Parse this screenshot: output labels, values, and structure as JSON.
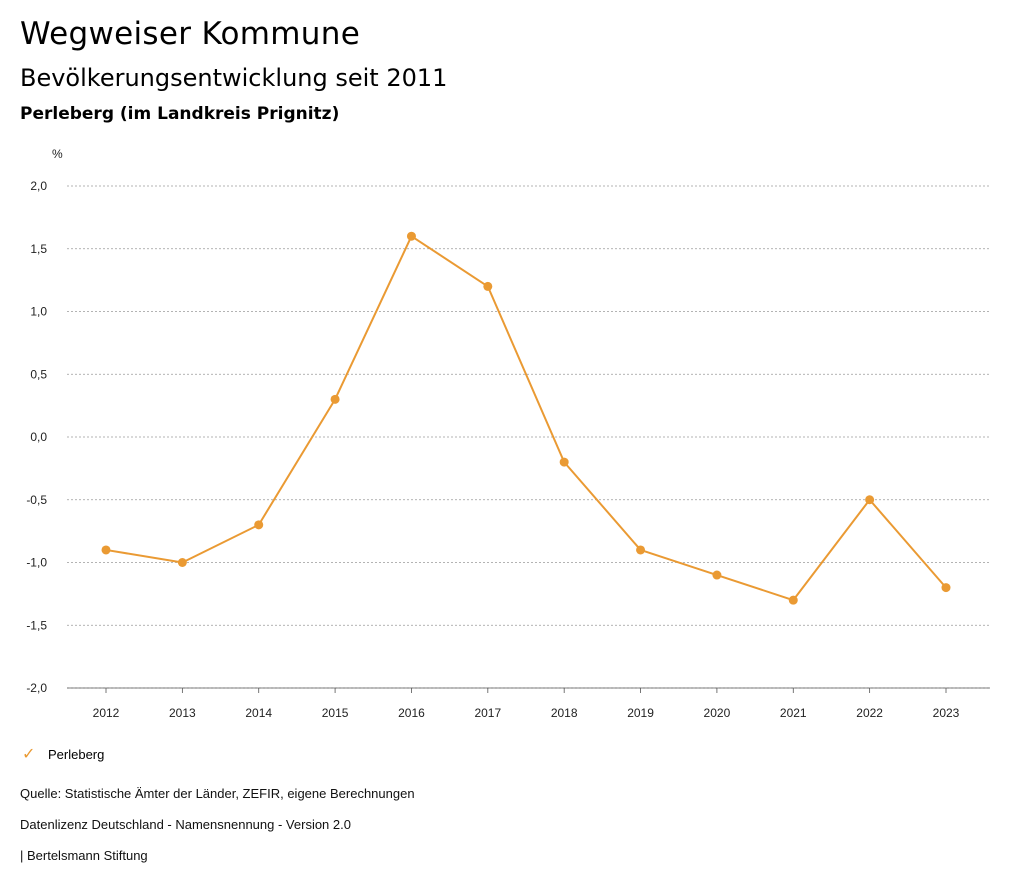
{
  "header": {
    "title": "Wegweiser Kommune",
    "subtitle": "Bevölkerungsentwicklung seit 2011",
    "place": "Perleberg (im Landkreis Prignitz)"
  },
  "legend": {
    "icon": "check-icon",
    "label": "Perleberg"
  },
  "footer": {
    "source": "Quelle: Statistische Ämter der Länder, ZEFIR, eigene Berechnungen",
    "license": "Datenlizenz Deutschland - Namensnennung - Version 2.0",
    "publisher": "| Bertelsmann Stiftung"
  },
  "chart_data": {
    "type": "line",
    "ylabel": "%",
    "xlabel": "",
    "categories": [
      "2012",
      "2013",
      "2014",
      "2015",
      "2016",
      "2017",
      "2018",
      "2019",
      "2020",
      "2021",
      "2022",
      "2023"
    ],
    "series": [
      {
        "name": "Perleberg",
        "color": "#ea9a33",
        "values": [
          -0.9,
          -1.0,
          -0.7,
          0.3,
          1.6,
          1.2,
          -0.2,
          -0.9,
          -1.1,
          -1.3,
          -0.5,
          -1.2
        ]
      }
    ],
    "ylim": [
      -2.0,
      2.0
    ],
    "yticks": [
      "2,0",
      "1,5",
      "1,0",
      "0,5",
      "0,0",
      "-0,5",
      "-1,0",
      "-1,5",
      "-2,0"
    ],
    "ytick_values": [
      2.0,
      1.5,
      1.0,
      0.5,
      0.0,
      -0.5,
      -1.0,
      -1.5,
      -2.0
    ],
    "grid": true,
    "legend_position": "bottom-left"
  }
}
